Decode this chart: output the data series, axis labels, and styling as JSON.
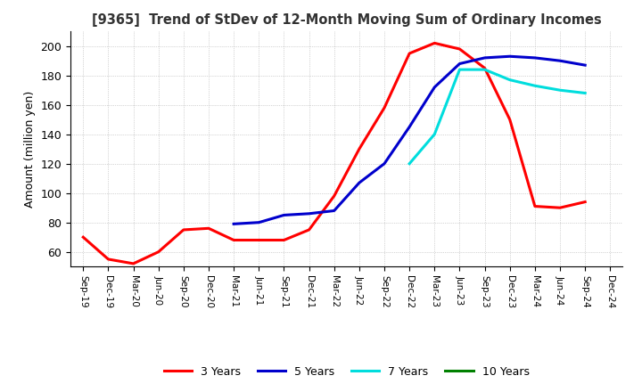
{
  "title": "[9365]  Trend of StDev of 12-Month Moving Sum of Ordinary Incomes",
  "ylabel": "Amount (million yen)",
  "ylim": [
    50,
    210
  ],
  "yticks": [
    60,
    80,
    100,
    120,
    140,
    160,
    180,
    200
  ],
  "background_color": "#ffffff",
  "grid_color": "#b0b0b0",
  "x_labels": [
    "Sep-19",
    "Dec-19",
    "Mar-20",
    "Jun-20",
    "Sep-20",
    "Dec-20",
    "Mar-21",
    "Jun-21",
    "Sep-21",
    "Dec-21",
    "Mar-22",
    "Jun-22",
    "Sep-22",
    "Dec-22",
    "Mar-23",
    "Jun-23",
    "Sep-23",
    "Dec-23",
    "Mar-24",
    "Jun-24",
    "Sep-24",
    "Dec-24"
  ],
  "series": {
    "3 Years": {
      "color": "#ff0000",
      "values": [
        70,
        55,
        52,
        60,
        75,
        76,
        68,
        68,
        68,
        75,
        98,
        130,
        158,
        195,
        202,
        198,
        185,
        150,
        91,
        90,
        94,
        null
      ]
    },
    "5 Years": {
      "color": "#0000cc",
      "values": [
        null,
        null,
        null,
        null,
        null,
        null,
        79,
        80,
        85,
        86,
        88,
        107,
        120,
        145,
        172,
        188,
        192,
        193,
        192,
        190,
        187,
        null
      ]
    },
    "7 Years": {
      "color": "#00dddd",
      "values": [
        null,
        null,
        null,
        null,
        null,
        null,
        null,
        null,
        null,
        null,
        null,
        null,
        null,
        120,
        140,
        184,
        184,
        177,
        173,
        170,
        168,
        null
      ]
    },
    "10 Years": {
      "color": "#008000",
      "values": [
        null,
        null,
        null,
        null,
        null,
        null,
        null,
        null,
        null,
        null,
        null,
        null,
        null,
        null,
        null,
        null,
        null,
        null,
        null,
        null,
        null,
        null
      ]
    }
  },
  "legend_labels": [
    "3 Years",
    "5 Years",
    "7 Years",
    "10 Years"
  ],
  "legend_colors": [
    "#ff0000",
    "#0000cc",
    "#00dddd",
    "#008000"
  ]
}
